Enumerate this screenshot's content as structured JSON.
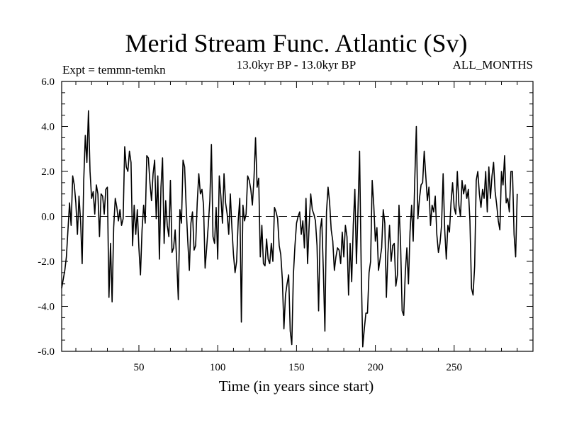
{
  "chart_data": {
    "type": "line",
    "title": "Merid Stream Func. Atlantic (Sv)",
    "subtitle": "13.0kyr BP - 13.0kyr BP",
    "left_annotation": "Expt = temmn-temkn",
    "right_annotation": "ALL_MONTHS",
    "xlabel": "Time (in years since start)",
    "ylabel": "",
    "xlim": [
      1,
      300
    ],
    "ylim": [
      -6.0,
      6.0
    ],
    "x_ticks": [
      50,
      100,
      150,
      200,
      250
    ],
    "x_tick_labels": [
      "50",
      "100",
      "150",
      "200",
      "250"
    ],
    "y_ticks": [
      -6,
      -4,
      -2,
      0,
      2,
      4,
      6
    ],
    "y_tick_labels": [
      "-6.0",
      "-4.0",
      "-2.0",
      "0.0",
      "2.0",
      "4.0",
      "6.0"
    ],
    "zero_line": "dashed",
    "line_color": "#000000",
    "series": [
      {
        "name": "Merid Stream Func.",
        "x_start": 1,
        "x_step": 1,
        "values": [
          -3.2,
          -2.8,
          -2.4,
          -1.8,
          -0.6,
          0.6,
          -0.4,
          1.8,
          1.4,
          0.6,
          -0.8,
          0.9,
          -0.2,
          -2.1,
          1.6,
          3.6,
          2.4,
          4.7,
          2.0,
          0.8,
          1.1,
          0.1,
          1.4,
          1.0,
          -0.9,
          1.0,
          0.9,
          0.1,
          1.2,
          1.3,
          -3.6,
          -1.2,
          -3.8,
          -0.5,
          0.8,
          0.4,
          -0.2,
          0.3,
          -0.4,
          -0.1,
          3.1,
          2.2,
          2.0,
          2.9,
          2.4,
          -1.3,
          0.5,
          -0.8,
          0.3,
          -1.4,
          -2.6,
          -0.6,
          0.5,
          -0.3,
          2.7,
          2.6,
          1.5,
          0.7,
          1.9,
          2.5,
          -0.1,
          1.8,
          -1.9,
          1.3,
          2.6,
          -1.2,
          0.7,
          -0.4,
          -0.9,
          1.6,
          -1.6,
          -1.4,
          -0.6,
          -2.0,
          -3.7,
          0.3,
          -0.3,
          2.5,
          2.2,
          0.4,
          -1.1,
          -2.4,
          -0.3,
          0.2,
          -1.5,
          -1.3,
          0.6,
          1.9,
          1.0,
          1.2,
          0.5,
          -2.3,
          -1.4,
          -0.4,
          0.7,
          3.2,
          -0.9,
          -1.2,
          0.4,
          -1.9,
          1.8,
          0.9,
          -0.3,
          1.9,
          0.6,
          0.1,
          -0.8,
          1.0,
          -0.5,
          -1.7,
          -2.5,
          -2.0,
          -0.2,
          0.8,
          -4.7,
          0.5,
          -0.2,
          0.1,
          1.8,
          1.6,
          1.2,
          0.5,
          1.7,
          3.5,
          1.3,
          1.7,
          -1.8,
          -0.4,
          -2.1,
          -2.2,
          -1.0,
          -1.9,
          -2.1,
          -1.2,
          -2.0,
          0.4,
          0.2,
          -0.1,
          -1.3,
          -1.7,
          -2.8,
          -5.0,
          -3.5,
          -3.0,
          -2.6,
          -5.1,
          -5.7,
          -2.6,
          -1.3,
          -0.3,
          0.0,
          0.2,
          -0.8,
          -0.2,
          -1.4,
          0.8,
          -2.1,
          -0.4,
          1.0,
          0.3,
          0.1,
          -0.2,
          -1.3,
          -4.2,
          -0.6,
          -0.1,
          -2.4,
          -5.1,
          0.2,
          1.3,
          0.6,
          -0.6,
          -1.1,
          -2.4,
          -1.8,
          -1.4,
          -1.5,
          -2.1,
          -0.7,
          -1.8,
          -0.4,
          -0.9,
          -3.5,
          -1.2,
          -2.9,
          -0.4,
          1.2,
          -2.1,
          0.3,
          2.9,
          -2.2,
          -5.8,
          -5.0,
          -4.3,
          -4.3,
          -2.5,
          -2.0,
          1.6,
          0.5,
          -1.1,
          -0.5,
          -2.4,
          -1.9,
          -1.4,
          0.3,
          -0.3,
          -3.6,
          -1.6,
          -0.4,
          -2.0,
          -1.3,
          -1.2,
          -3.1,
          -2.6,
          0.5,
          -1.2,
          -4.2,
          -4.4,
          -2.5,
          -1.4,
          -3.0,
          -0.7,
          0.5,
          -1.1,
          1.6,
          4.0,
          -0.1,
          0.8,
          1.4,
          1.5,
          2.9,
          1.8,
          0.7,
          1.3,
          -0.4,
          0.5,
          0.2,
          0.9,
          -0.8,
          -1.6,
          -1.2,
          -0.4,
          1.9,
          -0.6,
          -1.9,
          -0.4,
          -0.7,
          0.6,
          1.5,
          0.4,
          0.1,
          2.0,
          0.5,
          0.0,
          1.6,
          1.0,
          1.4,
          0.8,
          1.2,
          -0.2,
          -3.2,
          -3.5,
          -2.2,
          1.6,
          2.0,
          1.0,
          0.4,
          1.2,
          0.8,
          2.0,
          0.2,
          2.2,
          0.8,
          1.8,
          2.4,
          1.1,
          0.5,
          -0.2,
          -0.6,
          2.0,
          1.4,
          2.7,
          0.6,
          0.8,
          0.2,
          2.0,
          2.0,
          -0.8,
          -1.8,
          1.0
        ]
      }
    ]
  }
}
